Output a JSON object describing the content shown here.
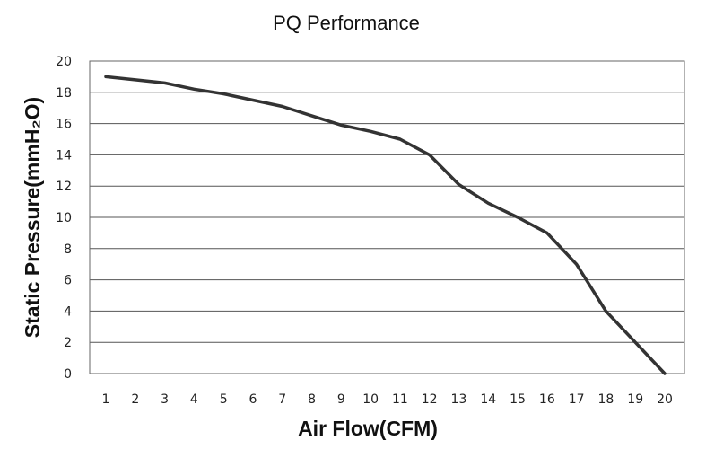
{
  "chart_data": {
    "type": "line",
    "title": "PQ Performance",
    "xlabel": "Air Flow(CFM)",
    "ylabel": "Static Pressure(mmH₂O)",
    "categories": [
      "1",
      "2",
      "3",
      "4",
      "5",
      "6",
      "7",
      "8",
      "9",
      "10",
      "11",
      "12",
      "13",
      "14",
      "15",
      "16",
      "17",
      "18",
      "19",
      "20"
    ],
    "xlim": [
      1,
      20
    ],
    "ylim": [
      0,
      20
    ],
    "y_ticks": [
      "0",
      "2",
      "4",
      "6",
      "8",
      "10",
      "12",
      "14",
      "16",
      "18",
      "20"
    ],
    "grid": "horizontal",
    "series": [
      {
        "x": [
          1,
          2,
          3,
          4,
          5,
          6,
          7,
          8,
          9,
          10,
          11,
          12,
          13,
          14,
          15,
          16,
          17,
          18,
          19,
          20
        ],
        "values": [
          19.0,
          18.8,
          18.6,
          18.2,
          17.9,
          17.5,
          17.1,
          16.5,
          15.9,
          15.5,
          15.0,
          14.0,
          12.1,
          10.9,
          10.0,
          9.0,
          7.0,
          4.0,
          2.0,
          0.0
        ],
        "color": "#333333"
      }
    ]
  }
}
